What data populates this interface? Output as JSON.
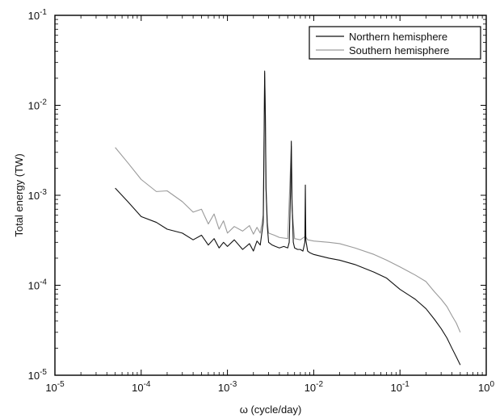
{
  "chart_data": {
    "type": "line",
    "title": "",
    "xlabel": "ω  (cycle/day)",
    "ylabel": "Total energy (TW)",
    "xscale": "log",
    "yscale": "log",
    "xlim": [
      1e-05,
      1
    ],
    "ylim": [
      1e-05,
      0.1
    ],
    "grid": false,
    "legend_position": "top-right",
    "x_ticks": [
      {
        "value": 1e-05,
        "base": "10",
        "exp": "-5"
      },
      {
        "value": 0.0001,
        "base": "10",
        "exp": "-4"
      },
      {
        "value": 0.001,
        "base": "10",
        "exp": "-3"
      },
      {
        "value": 0.01,
        "base": "10",
        "exp": "-2"
      },
      {
        "value": 0.1,
        "base": "10",
        "exp": "-1"
      },
      {
        "value": 1,
        "base": "10",
        "exp": "0"
      }
    ],
    "y_ticks": [
      {
        "value": 1e-05,
        "base": "10",
        "exp": "-5"
      },
      {
        "value": 0.0001,
        "base": "10",
        "exp": "-4"
      },
      {
        "value": 0.001,
        "base": "10",
        "exp": "-3"
      },
      {
        "value": 0.01,
        "base": "10",
        "exp": "-2"
      },
      {
        "value": 0.1,
        "base": "10",
        "exp": "-1"
      }
    ],
    "series": [
      {
        "name": "Northern hemisphere",
        "color": "#111111",
        "x": [
          5e-05,
          7e-05,
          0.0001,
          0.00015,
          0.0002,
          0.0003,
          0.0004,
          0.0005,
          0.0006,
          0.0007,
          0.0008,
          0.0009,
          0.001,
          0.0012,
          0.0015,
          0.0018,
          0.002,
          0.0022,
          0.0024,
          0.0026,
          0.00265,
          0.0027,
          0.00275,
          0.0028,
          0.0029,
          0.003,
          0.0033,
          0.0036,
          0.004,
          0.0045,
          0.005,
          0.0052,
          0.0054,
          0.0055,
          0.0056,
          0.0058,
          0.006,
          0.0065,
          0.007,
          0.0075,
          0.0079,
          0.008,
          0.0081,
          0.0085,
          0.009,
          0.01,
          0.015,
          0.02,
          0.03,
          0.05,
          0.07,
          0.1,
          0.15,
          0.2,
          0.25,
          0.3,
          0.35,
          0.4,
          0.45,
          0.5
        ],
        "values": [
          0.0012,
          0.00085,
          0.00058,
          0.0005,
          0.00042,
          0.00038,
          0.00032,
          0.00036,
          0.00028,
          0.00033,
          0.00026,
          0.0003,
          0.00027,
          0.00032,
          0.00025,
          0.00029,
          0.00024,
          0.00031,
          0.00028,
          0.0005,
          0.003,
          0.024,
          0.008,
          0.0012,
          0.00045,
          0.0003,
          0.00028,
          0.00027,
          0.00026,
          0.00027,
          0.00026,
          0.0003,
          0.0012,
          0.004,
          0.0009,
          0.0003,
          0.00026,
          0.00025,
          0.00025,
          0.00024,
          0.0003,
          0.0013,
          0.00032,
          0.00024,
          0.00023,
          0.00022,
          0.0002,
          0.00019,
          0.00017,
          0.00014,
          0.00012,
          9e-05,
          7e-05,
          5.5e-05,
          4.2e-05,
          3.3e-05,
          2.6e-05,
          2e-05,
          1.6e-05,
          1.3e-05
        ]
      },
      {
        "name": "Southern hemisphere",
        "color": "#9a9a9a",
        "x": [
          5e-05,
          7e-05,
          0.0001,
          0.00015,
          0.0002,
          0.0003,
          0.0004,
          0.0005,
          0.0006,
          0.0007,
          0.0008,
          0.0009,
          0.001,
          0.0012,
          0.0015,
          0.0018,
          0.002,
          0.0022,
          0.0024,
          0.0026,
          0.00265,
          0.0027,
          0.00275,
          0.0028,
          0.0029,
          0.003,
          0.0035,
          0.004,
          0.005,
          0.0055,
          0.0056,
          0.006,
          0.007,
          0.008,
          0.0085,
          0.01,
          0.015,
          0.02,
          0.03,
          0.05,
          0.07,
          0.1,
          0.15,
          0.2,
          0.25,
          0.3,
          0.35,
          0.4,
          0.45,
          0.5
        ],
        "values": [
          0.0034,
          0.0023,
          0.0015,
          0.0011,
          0.00112,
          0.00085,
          0.00065,
          0.0007,
          0.00048,
          0.00062,
          0.00042,
          0.00052,
          0.00038,
          0.00045,
          0.0004,
          0.00046,
          0.00037,
          0.00044,
          0.00038,
          0.0006,
          0.003,
          0.023,
          0.008,
          0.0012,
          0.0005,
          0.00038,
          0.00036,
          0.00034,
          0.00033,
          0.0035,
          0.0007,
          0.00033,
          0.00032,
          0.00035,
          0.00032,
          0.00031,
          0.0003,
          0.00029,
          0.00026,
          0.00022,
          0.00019,
          0.00016,
          0.00013,
          0.00011,
          8.5e-05,
          7e-05,
          5.8e-05,
          4.6e-05,
          3.8e-05,
          3e-05
        ]
      }
    ]
  }
}
